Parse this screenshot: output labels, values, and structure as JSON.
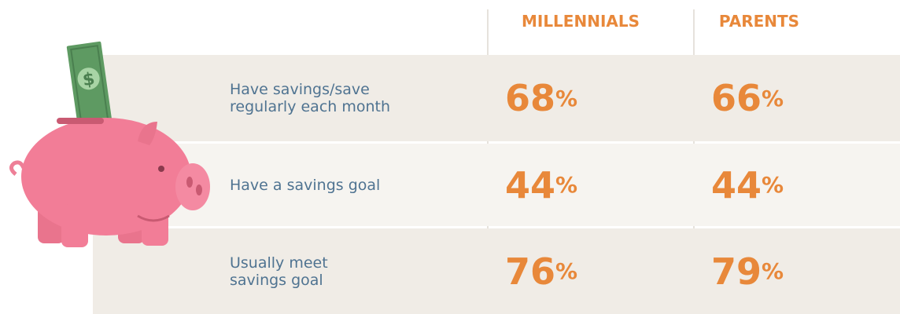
{
  "header": {
    "columns": [
      "MILLENNIALS",
      "PARENTS"
    ]
  },
  "table": {
    "rows": [
      {
        "label": "Have savings/save\nregularly each month",
        "values": [
          "68%",
          "66%"
        ]
      },
      {
        "label": "Have a savings goal",
        "values": [
          "44%",
          "44%"
        ]
      },
      {
        "label": "Usually meet\nsavings goal",
        "values": [
          "76%",
          "79%"
        ]
      }
    ]
  }
}
